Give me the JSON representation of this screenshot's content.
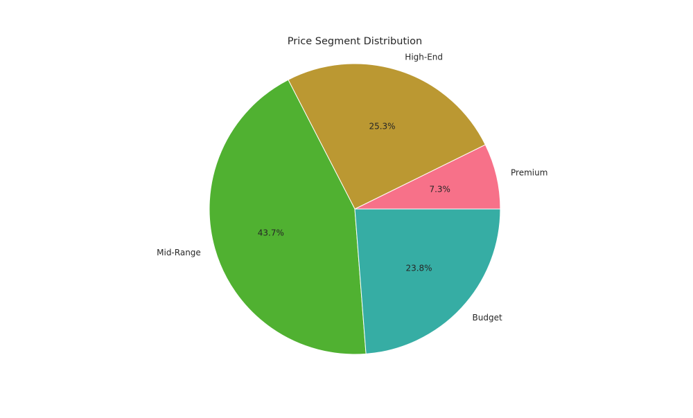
{
  "chart_data": {
    "type": "pie",
    "title": "Price Segment Distribution",
    "slices": [
      {
        "label": "Premium",
        "value": 7.3,
        "pct_label": "7.3%",
        "color": "#f77189"
      },
      {
        "label": "High-End",
        "value": 25.3,
        "pct_label": "25.3%",
        "color": "#bb9832"
      },
      {
        "label": "Mid-Range",
        "value": 43.7,
        "pct_label": "43.7%",
        "color": "#50b131"
      },
      {
        "label": "Budget",
        "value": 23.8,
        "pct_label": "23.8%",
        "color": "#36ada4"
      }
    ],
    "start_angle_deg": 0,
    "direction": "counterclockwise",
    "legend": "none"
  }
}
